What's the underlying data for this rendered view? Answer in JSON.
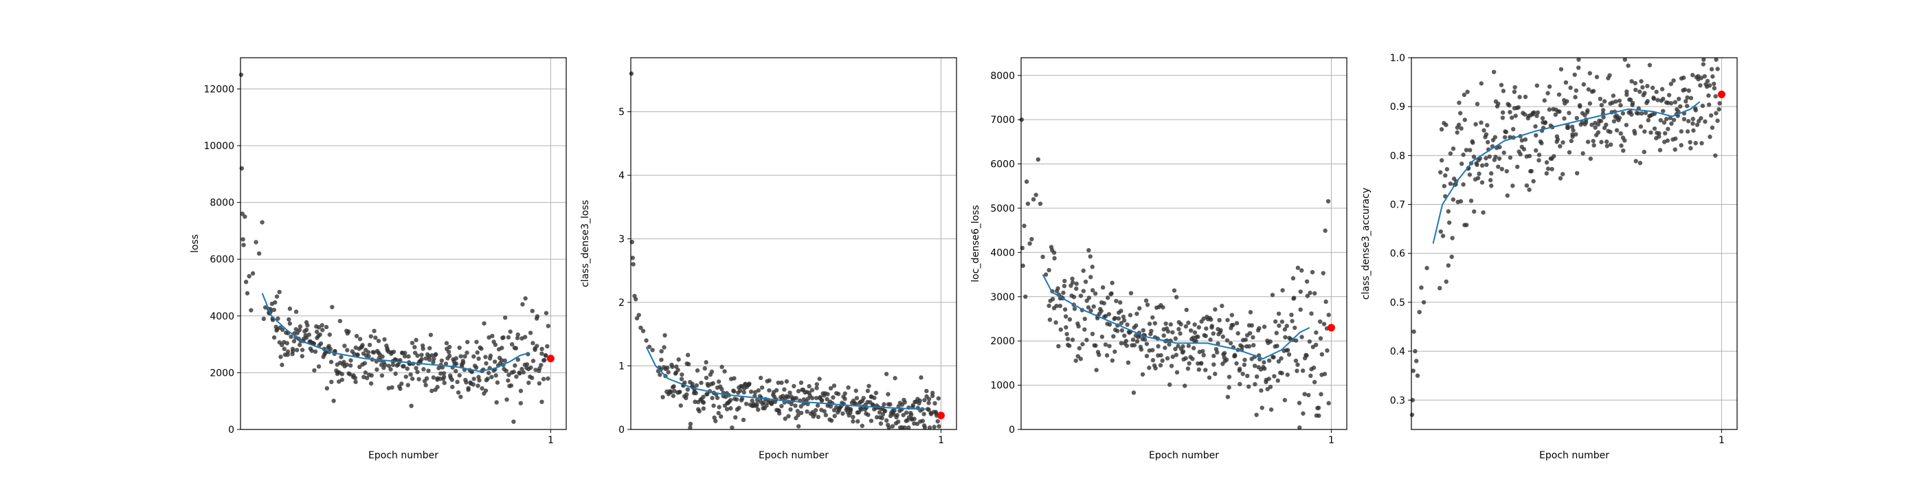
{
  "chart_data": [
    {
      "type": "scatter",
      "title": "",
      "xlabel": "Epoch number",
      "ylabel": "loss",
      "xlim": [
        0,
        1.05
      ],
      "ylim": [
        0,
        13100
      ],
      "xticks": [
        1
      ],
      "xtick_labels": [
        "1"
      ],
      "yticks": [
        0,
        2000,
        4000,
        6000,
        8000,
        10000,
        12000
      ],
      "ytick_labels": [
        "0",
        "2000",
        "4000",
        "6000",
        "8000",
        "10000",
        "12000"
      ],
      "grid": true,
      "n_points": 420,
      "early_points": [
        [
          0.002,
          12500
        ],
        [
          0.004,
          9200
        ],
        [
          0.006,
          7600
        ],
        [
          0.008,
          6700
        ],
        [
          0.01,
          6500
        ],
        [
          0.014,
          7500
        ],
        [
          0.018,
          5200
        ],
        [
          0.022,
          4800
        ],
        [
          0.028,
          5400
        ],
        [
          0.034,
          4200
        ],
        [
          0.04,
          5500
        ],
        [
          0.05,
          6600
        ],
        [
          0.06,
          6200
        ],
        [
          0.07,
          7300
        ],
        [
          0.075,
          3900
        ],
        [
          0.08,
          4300
        ]
      ],
      "smoothed_start": 0.07,
      "smoothed_end": 0.93,
      "trend": [
        [
          0.07,
          4800
        ],
        [
          0.1,
          4000
        ],
        [
          0.15,
          3500
        ],
        [
          0.2,
          3100
        ],
        [
          0.3,
          2700
        ],
        [
          0.4,
          2500
        ],
        [
          0.5,
          2400
        ],
        [
          0.6,
          2300
        ],
        [
          0.7,
          2200
        ],
        [
          0.77,
          2050
        ],
        [
          0.82,
          2150
        ],
        [
          0.87,
          2400
        ],
        [
          0.9,
          2600
        ],
        [
          0.93,
          2700
        ]
      ],
      "band": [
        [
          0.0,
          0
        ],
        [
          0.07,
          600
        ],
        [
          0.2,
          500
        ],
        [
          0.5,
          450
        ],
        [
          0.75,
          450
        ],
        [
          0.85,
          750
        ],
        [
          0.95,
          900
        ],
        [
          1.0,
          900
        ]
      ],
      "final_point": {
        "x": 1,
        "y": 2500
      },
      "colors": {
        "points": "#333333",
        "trend": "#1f77b4",
        "final": "#ff0000"
      }
    },
    {
      "type": "scatter",
      "title": "",
      "xlabel": "Epoch number",
      "ylabel": "class_dense3_loss",
      "xlim": [
        0,
        1.05
      ],
      "ylim": [
        0,
        5.85
      ],
      "xticks": [
        1
      ],
      "xtick_labels": [
        "1"
      ],
      "yticks": [
        0,
        1,
        2,
        3,
        4,
        5
      ],
      "ytick_labels": [
        "0",
        "1",
        "2",
        "3",
        "4",
        "5"
      ],
      "grid": true,
      "n_points": 420,
      "early_points": [
        [
          0.002,
          5.6
        ],
        [
          0.004,
          2.95
        ],
        [
          0.006,
          2.7
        ],
        [
          0.008,
          2.6
        ],
        [
          0.012,
          2.1
        ],
        [
          0.016,
          2.05
        ],
        [
          0.02,
          1.75
        ],
        [
          0.026,
          1.8
        ],
        [
          0.032,
          1.6
        ],
        [
          0.04,
          1.55
        ],
        [
          0.05,
          1.4
        ],
        [
          0.06,
          1.3
        ],
        [
          0.07,
          1.25
        ]
      ],
      "smoothed_start": 0.05,
      "smoothed_end": 0.95,
      "trend": [
        [
          0.05,
          1.3
        ],
        [
          0.08,
          1.0
        ],
        [
          0.12,
          0.8
        ],
        [
          0.2,
          0.65
        ],
        [
          0.3,
          0.55
        ],
        [
          0.4,
          0.5
        ],
        [
          0.5,
          0.45
        ],
        [
          0.6,
          0.42
        ],
        [
          0.7,
          0.38
        ],
        [
          0.8,
          0.35
        ],
        [
          0.88,
          0.33
        ],
        [
          0.95,
          0.32
        ]
      ],
      "band": [
        [
          0.0,
          0.3
        ],
        [
          0.1,
          0.25
        ],
        [
          0.3,
          0.2
        ],
        [
          0.6,
          0.17
        ],
        [
          0.85,
          0.2
        ],
        [
          1.0,
          0.2
        ]
      ],
      "final_point": {
        "x": 1,
        "y": 0.22
      },
      "colors": {
        "points": "#333333",
        "trend": "#1f77b4",
        "final": "#ff0000"
      }
    },
    {
      "type": "scatter",
      "title": "",
      "xlabel": "Epoch number",
      "ylabel": "loc_dense6_loss",
      "xlim": [
        0,
        1.05
      ],
      "ylim": [
        0,
        8400
      ],
      "xticks": [
        1
      ],
      "xtick_labels": [
        "1"
      ],
      "yticks": [
        0,
        1000,
        2000,
        3000,
        4000,
        5000,
        6000,
        7000,
        8000
      ],
      "ytick_labels": [
        "0",
        "1000",
        "2000",
        "3000",
        "4000",
        "5000",
        "6000",
        "7000",
        "8000"
      ],
      "grid": true,
      "n_points": 420,
      "early_points": [
        [
          0.002,
          7000
        ],
        [
          0.004,
          4100
        ],
        [
          0.006,
          3700
        ],
        [
          0.01,
          4600
        ],
        [
          0.014,
          3000
        ],
        [
          0.018,
          5600
        ],
        [
          0.022,
          5100
        ],
        [
          0.028,
          4200
        ],
        [
          0.034,
          4300
        ],
        [
          0.04,
          5200
        ],
        [
          0.048,
          5300
        ],
        [
          0.055,
          6100
        ],
        [
          0.062,
          5100
        ],
        [
          0.07,
          3900
        ],
        [
          0.08,
          3500
        ],
        [
          0.09,
          3600
        ]
      ],
      "smoothed_start": 0.07,
      "smoothed_end": 0.93,
      "trend": [
        [
          0.07,
          3500
        ],
        [
          0.1,
          3100
        ],
        [
          0.15,
          2900
        ],
        [
          0.2,
          2700
        ],
        [
          0.3,
          2400
        ],
        [
          0.4,
          2100
        ],
        [
          0.5,
          1950
        ],
        [
          0.6,
          1950
        ],
        [
          0.7,
          1800
        ],
        [
          0.78,
          1600
        ],
        [
          0.84,
          1800
        ],
        [
          0.9,
          2200
        ],
        [
          0.93,
          2300
        ]
      ],
      "band": [
        [
          0.0,
          800
        ],
        [
          0.1,
          700
        ],
        [
          0.3,
          500
        ],
        [
          0.6,
          420
        ],
        [
          0.8,
          500
        ],
        [
          0.9,
          1100
        ],
        [
          1.0,
          1300
        ]
      ],
      "final_point": {
        "x": 1,
        "y": 2300
      },
      "colors": {
        "points": "#333333",
        "trend": "#1f77b4",
        "final": "#ff0000"
      }
    },
    {
      "type": "scatter",
      "title": "",
      "xlabel": "Epoch number",
      "ylabel": "class_dense3_accuracy",
      "xlim": [
        0,
        1.05
      ],
      "ylim": [
        0.24,
        1.0
      ],
      "xticks": [
        1
      ],
      "xtick_labels": [
        "1"
      ],
      "yticks": [
        0.3,
        0.4,
        0.5,
        0.6,
        0.7,
        0.8,
        0.9,
        1.0
      ],
      "ytick_labels": [
        "0.3",
        "0.4",
        "0.5",
        "0.6",
        "0.7",
        "0.8",
        "0.9",
        "1.0"
      ],
      "grid": true,
      "n_points": 420,
      "early_points": [
        [
          0.002,
          0.27
        ],
        [
          0.004,
          0.3
        ],
        [
          0.006,
          0.36
        ],
        [
          0.008,
          0.44
        ],
        [
          0.012,
          0.4
        ],
        [
          0.016,
          0.38
        ],
        [
          0.02,
          0.35
        ],
        [
          0.026,
          0.48
        ],
        [
          0.032,
          0.53
        ],
        [
          0.04,
          0.5
        ],
        [
          0.05,
          0.57
        ]
      ],
      "smoothed_start": 0.07,
      "smoothed_end": 0.93,
      "trend": [
        [
          0.07,
          0.62
        ],
        [
          0.1,
          0.7
        ],
        [
          0.15,
          0.75
        ],
        [
          0.2,
          0.79
        ],
        [
          0.3,
          0.83
        ],
        [
          0.4,
          0.85
        ],
        [
          0.5,
          0.865
        ],
        [
          0.6,
          0.88
        ],
        [
          0.7,
          0.895
        ],
        [
          0.78,
          0.89
        ],
        [
          0.84,
          0.88
        ],
        [
          0.9,
          0.895
        ],
        [
          0.93,
          0.91
        ]
      ],
      "band": [
        [
          0.0,
          0.1
        ],
        [
          0.1,
          0.09
        ],
        [
          0.3,
          0.06
        ],
        [
          0.6,
          0.045
        ],
        [
          0.85,
          0.045
        ],
        [
          1.0,
          0.04
        ]
      ],
      "final_point": {
        "x": 1,
        "y": 0.925
      },
      "colors": {
        "points": "#333333",
        "trend": "#1f77b4",
        "final": "#ff0000"
      }
    }
  ]
}
